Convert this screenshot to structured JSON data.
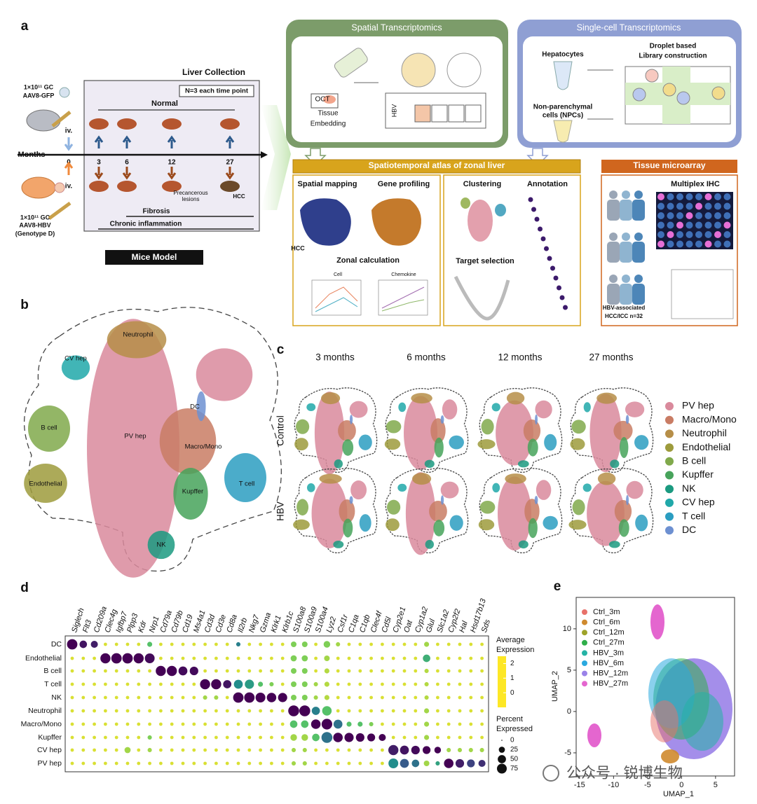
{
  "panel_labels": [
    "a",
    "b",
    "c",
    "d",
    "e"
  ],
  "panel_a": {
    "mouse_gfp": [
      "1×10¹¹ GC",
      "AAV8-GFP"
    ],
    "mouse_hbv": [
      "1×10¹¹ GC",
      "AAV8-HBV",
      "(Genotype D)"
    ],
    "liver_collection": "Liver Collection",
    "n_note": "N=3 each time point",
    "normal": "Normal",
    "months": "Months",
    "timepoints": [
      0,
      3,
      6,
      12,
      27
    ],
    "iv": [
      "iv.",
      "iv."
    ],
    "precancerous": [
      "Precancerous",
      "lesions"
    ],
    "hcc": "HCC",
    "fibrosis": "Fibrosis",
    "inflammation": "Chronic inflammation",
    "mice_model": "Mice Model",
    "spatial": {
      "title": "Spatial Transcriptomics",
      "oct": "OCT",
      "tissue": [
        "Tissue",
        "Embedding"
      ],
      "hbv": "HBV"
    },
    "single_cell": {
      "title": "Single-cell Transcriptomics",
      "hepatocytes": "Hepatocytes",
      "droplet": [
        "Droplet based",
        "Library construction"
      ],
      "npc": [
        "Non-parenchymal",
        "cells (NPCs)"
      ]
    },
    "atlas": {
      "title": "Spatiotemporal atlas of zonal liver",
      "spatial_mapping": "Spatial mapping",
      "gene_profiling": "Gene profiling",
      "hcc": "HCC",
      "zonal": "Zonal calculation",
      "cell": "Cell",
      "chemokine": "Chemokine",
      "clustering": "Clustering",
      "annotation": "Annotation",
      "target": "Target selection"
    },
    "tma": {
      "title": "Tissue microarray",
      "ihc": "Multiplex IHC",
      "cohort": [
        "HBV-associated",
        "HCC/ICC   n=32"
      ]
    }
  },
  "panel_b": {
    "labels": [
      "Neutrophil",
      "CV hep",
      "DC",
      "B cell",
      "PV hep",
      "Macro/Mono",
      "Endothelial",
      "Kupffer",
      "T cell",
      "NK"
    ]
  },
  "panel_c": {
    "columns": [
      "3 months",
      "6 months",
      "12 months",
      "27 months"
    ],
    "rows": [
      "Control",
      "HBV"
    ],
    "legend": [
      {
        "name": "PV hep",
        "color": "#d98a9c"
      },
      {
        "name": "Macro/Mono",
        "color": "#c97c64"
      },
      {
        "name": "Neutrophil",
        "color": "#b68e48"
      },
      {
        "name": "Endothelial",
        "color": "#9d9b3c"
      },
      {
        "name": "B cell",
        "color": "#80a94b"
      },
      {
        "name": "Kupffer",
        "color": "#47a35b"
      },
      {
        "name": "NK",
        "color": "#1b9a80"
      },
      {
        "name": "CV hep",
        "color": "#20a8a9"
      },
      {
        "name": "T cell",
        "color": "#2b9dc1"
      },
      {
        "name": "DC",
        "color": "#6d90d1"
      }
    ]
  },
  "chart_data": [
    {
      "type": "dotplot",
      "categories": [
        "Siglech",
        "Flt3",
        "Cd209a",
        "Clec4g",
        "Igfbp7",
        "Plpp3",
        "Kdr",
        "Nrp1",
        "Cd79a",
        "Cd79b",
        "Cd19",
        "Ms4a1",
        "Cd3d",
        "Cd3e",
        "Cd8a",
        "Il2rb",
        "Nkg7",
        "Gzma",
        "Klrk1",
        "Klrb1c",
        "S100a8",
        "S100a9",
        "S100a4",
        "Lyz2",
        "Csf1r",
        "C1qa",
        "C1qb",
        "Clec4f",
        "Cd5l",
        "Cyp2e1",
        "Oat",
        "Cyp1a2",
        "Glul",
        "Slc1a2",
        "Cyp2f2",
        "Hal",
        "Hsd17b13",
        "Sds"
      ],
      "series": [
        {
          "name": "DC",
          "values": [
            85,
            40,
            35,
            5,
            5,
            5,
            5,
            15,
            5,
            5,
            5,
            5,
            5,
            5,
            5,
            10,
            5,
            5,
            5,
            5,
            20,
            20,
            5,
            30,
            10,
            5,
            5,
            5,
            5,
            5,
            5,
            5,
            15,
            5,
            5,
            5,
            5,
            5
          ],
          "avg": [
            2.5,
            2.3,
            2.2,
            -0.8,
            -0.8,
            -0.8,
            -0.8,
            0,
            -0.8,
            -0.8,
            -0.8,
            -0.8,
            -0.8,
            -0.8,
            -0.8,
            1,
            -0.8,
            -0.8,
            -0.8,
            -0.8,
            -0.3,
            -0.3,
            -0.8,
            -0.3,
            -0.5,
            -0.8,
            -0.8,
            -0.8,
            -0.8,
            -0.8,
            -0.8,
            -0.8,
            -0.5,
            -0.8,
            -0.8,
            -0.8,
            -0.8,
            -0.8
          ]
        },
        {
          "name": "Endothelial",
          "values": [
            5,
            5,
            5,
            80,
            85,
            85,
            80,
            75,
            5,
            5,
            5,
            5,
            5,
            5,
            5,
            5,
            5,
            5,
            5,
            5,
            25,
            25,
            5,
            20,
            5,
            5,
            5,
            5,
            5,
            5,
            5,
            5,
            40,
            5,
            5,
            5,
            5,
            5
          ],
          "avg": [
            -0.8,
            -0.8,
            -0.8,
            2.5,
            2.5,
            2.5,
            2.5,
            2.4,
            -0.8,
            -0.8,
            -0.8,
            -0.8,
            -0.8,
            -0.8,
            -0.8,
            -0.8,
            -0.8,
            -0.8,
            -0.8,
            -0.8,
            -0.3,
            -0.3,
            -0.8,
            -0.5,
            -0.8,
            -0.8,
            -0.8,
            -0.8,
            -0.8,
            -0.8,
            -0.8,
            -0.8,
            0.3,
            -0.8,
            -0.8,
            -0.8,
            -0.8,
            -0.8
          ]
        },
        {
          "name": "B cell",
          "values": [
            5,
            5,
            5,
            5,
            5,
            5,
            5,
            5,
            80,
            80,
            60,
            55,
            5,
            5,
            5,
            5,
            5,
            5,
            5,
            5,
            20,
            20,
            5,
            15,
            5,
            5,
            5,
            5,
            5,
            5,
            5,
            5,
            10,
            5,
            5,
            5,
            5,
            5
          ],
          "avg": [
            -0.8,
            -0.8,
            -0.8,
            -0.8,
            -0.8,
            -0.8,
            -0.8,
            -0.8,
            2.5,
            2.5,
            2.4,
            2.4,
            -0.8,
            -0.8,
            -0.8,
            -0.8,
            -0.8,
            -0.8,
            -0.8,
            -0.8,
            -0.3,
            -0.3,
            -0.8,
            -0.6,
            -0.8,
            -0.8,
            -0.8,
            -0.8,
            -0.8,
            -0.8,
            -0.8,
            -0.8,
            -0.6,
            -0.8,
            -0.8,
            -0.8,
            -0.8,
            -0.8
          ]
        },
        {
          "name": "T cell",
          "values": [
            5,
            5,
            5,
            5,
            5,
            5,
            5,
            5,
            5,
            5,
            5,
            5,
            80,
            80,
            50,
            60,
            65,
            15,
            10,
            5,
            20,
            20,
            10,
            15,
            5,
            5,
            5,
            5,
            5,
            5,
            5,
            5,
            10,
            5,
            5,
            5,
            5,
            5
          ],
          "avg": [
            -0.8,
            -0.8,
            -0.8,
            -0.8,
            -0.8,
            -0.8,
            -0.8,
            -0.8,
            -0.8,
            -0.8,
            -0.8,
            -0.8,
            2.5,
            2.5,
            2.3,
            0.8,
            0.6,
            0,
            -0.3,
            -0.8,
            -0.3,
            -0.3,
            -0.5,
            -0.6,
            -0.8,
            -0.8,
            -0.8,
            -0.8,
            -0.8,
            -0.8,
            -0.8,
            -0.8,
            -0.6,
            -0.8,
            -0.8,
            -0.8,
            -0.8,
            -0.8
          ]
        },
        {
          "name": "NK",
          "values": [
            5,
            5,
            5,
            5,
            5,
            5,
            5,
            5,
            5,
            5,
            5,
            5,
            10,
            10,
            5,
            85,
            85,
            75,
            70,
            65,
            20,
            20,
            10,
            15,
            5,
            5,
            5,
            5,
            5,
            5,
            5,
            5,
            10,
            5,
            5,
            5,
            5,
            5
          ],
          "avg": [
            -0.8,
            -0.8,
            -0.8,
            -0.8,
            -0.8,
            -0.8,
            -0.8,
            -0.8,
            -0.8,
            -0.8,
            -0.8,
            -0.8,
            -0.5,
            -0.5,
            -0.8,
            2.5,
            2.5,
            2.5,
            2.5,
            2.5,
            -0.3,
            -0.3,
            -0.5,
            -0.6,
            -0.8,
            -0.8,
            -0.8,
            -0.8,
            -0.8,
            -0.8,
            -0.8,
            -0.8,
            -0.6,
            -0.8,
            -0.8,
            -0.8,
            -0.8,
            -0.8
          ]
        },
        {
          "name": "Neutrophil",
          "values": [
            5,
            5,
            5,
            5,
            5,
            5,
            5,
            5,
            5,
            5,
            5,
            5,
            5,
            5,
            5,
            5,
            5,
            5,
            5,
            5,
            95,
            95,
            50,
            70,
            5,
            5,
            5,
            5,
            5,
            5,
            5,
            5,
            15,
            5,
            5,
            5,
            5,
            5
          ],
          "avg": [
            -0.8,
            -0.8,
            -0.8,
            -0.8,
            -0.8,
            -0.8,
            -0.8,
            -0.8,
            -0.8,
            -0.8,
            -0.8,
            -0.8,
            -0.8,
            -0.8,
            -0.8,
            -0.8,
            -0.8,
            -0.8,
            -0.8,
            -0.8,
            2.5,
            2.5,
            1,
            0,
            -0.8,
            -0.8,
            -0.8,
            -0.8,
            -0.8,
            -0.8,
            -0.8,
            -0.8,
            -0.5,
            -0.8,
            -0.8,
            -0.8,
            -0.8,
            -0.8
          ]
        },
        {
          "name": "Macro/Mono",
          "values": [
            5,
            5,
            5,
            5,
            5,
            5,
            5,
            5,
            5,
            5,
            5,
            5,
            5,
            5,
            5,
            5,
            5,
            5,
            5,
            5,
            40,
            40,
            70,
            90,
            60,
            15,
            15,
            10,
            5,
            5,
            5,
            5,
            15,
            5,
            5,
            5,
            5,
            5
          ],
          "avg": [
            -0.8,
            -0.8,
            -0.8,
            -0.8,
            -0.8,
            -0.8,
            -0.8,
            -0.8,
            -0.8,
            -0.8,
            -0.8,
            -0.8,
            -0.8,
            -0.8,
            -0.8,
            -0.8,
            -0.8,
            -0.8,
            -0.8,
            -0.8,
            0,
            0,
            2.5,
            2.5,
            1.2,
            0,
            0,
            -0.3,
            -0.8,
            -0.8,
            -0.8,
            -0.8,
            -0.5,
            -0.8,
            -0.8,
            -0.8,
            -0.8,
            -0.8
          ]
        },
        {
          "name": "Kupffer",
          "values": [
            5,
            5,
            5,
            5,
            5,
            5,
            5,
            10,
            5,
            5,
            5,
            5,
            5,
            5,
            5,
            5,
            5,
            5,
            5,
            5,
            30,
            30,
            40,
            95,
            70,
            65,
            55,
            45,
            35,
            5,
            5,
            5,
            15,
            5,
            5,
            5,
            5,
            5
          ],
          "avg": [
            -0.8,
            -0.8,
            -0.8,
            -0.8,
            -0.8,
            -0.8,
            -0.8,
            -0.3,
            -0.8,
            -0.8,
            -0.8,
            -0.8,
            -0.8,
            -0.8,
            -0.8,
            -0.8,
            -0.8,
            -0.8,
            -0.8,
            -0.8,
            -0.5,
            -0.5,
            0,
            1.2,
            2.5,
            2.5,
            2.5,
            2.5,
            2.5,
            -0.8,
            -0.8,
            -0.8,
            -0.5,
            -0.8,
            -0.8,
            -0.8,
            -0.8,
            -0.8
          ]
        },
        {
          "name": "CV hep",
          "values": [
            5,
            5,
            5,
            5,
            5,
            25,
            5,
            10,
            5,
            5,
            5,
            5,
            5,
            5,
            5,
            5,
            5,
            5,
            5,
            5,
            10,
            10,
            5,
            5,
            5,
            5,
            5,
            5,
            5,
            80,
            60,
            55,
            45,
            30,
            10,
            10,
            10,
            10
          ],
          "avg": [
            -0.8,
            -0.8,
            -0.8,
            -0.8,
            -0.8,
            -0.5,
            -0.8,
            -0.5,
            -0.8,
            -0.8,
            -0.8,
            -0.8,
            -0.8,
            -0.8,
            -0.8,
            -0.8,
            -0.8,
            -0.8,
            -0.8,
            -0.8,
            -0.5,
            -0.5,
            -0.8,
            -0.8,
            -0.8,
            -0.8,
            -0.8,
            -0.8,
            -0.8,
            2.2,
            2.3,
            2.4,
            2.5,
            2.5,
            -0.5,
            -0.5,
            -0.5,
            -0.5
          ]
        },
        {
          "name": "PV hep",
          "values": [
            5,
            5,
            5,
            5,
            5,
            5,
            5,
            5,
            5,
            5,
            5,
            5,
            5,
            5,
            5,
            5,
            5,
            5,
            5,
            5,
            10,
            10,
            5,
            5,
            5,
            5,
            5,
            5,
            5,
            75,
            60,
            40,
            20,
            10,
            70,
            55,
            45,
            35
          ],
          "avg": [
            -0.8,
            -0.8,
            -0.8,
            -0.8,
            -0.8,
            -0.8,
            -0.8,
            -0.8,
            -0.8,
            -0.8,
            -0.8,
            -0.8,
            -0.8,
            -0.8,
            -0.8,
            -0.8,
            -0.8,
            -0.8,
            -0.8,
            -0.8,
            -0.5,
            -0.5,
            -0.8,
            -0.8,
            -0.8,
            -0.8,
            -0.8,
            -0.8,
            -0.8,
            0.8,
            1.5,
            1.2,
            -0.5,
            0.5,
            2.5,
            2.2,
            1.8,
            2
          ]
        }
      ],
      "color_title": [
        "Average",
        "Expression"
      ],
      "clim": [
        -1,
        2.5
      ],
      "cticks": [
        2,
        1,
        0
      ],
      "size_title": [
        "Percent",
        "Expressed"
      ],
      "size_ticks": [
        0,
        25,
        50,
        75
      ]
    },
    {
      "type": "scatter",
      "series": [
        {
          "name": "Ctrl_3m",
          "color": "#e8716a"
        },
        {
          "name": "Ctrl_6m",
          "color": "#cf8a2e"
        },
        {
          "name": "Ctrl_12m",
          "color": "#9ea32a"
        },
        {
          "name": "Ctrl_27m",
          "color": "#2fae4a"
        },
        {
          "name": "HBV_3m",
          "color": "#25b3a5"
        },
        {
          "name": "HBV_6m",
          "color": "#2aa9df"
        },
        {
          "name": "HBV_12m",
          "color": "#9a82e8"
        },
        {
          "name": "HBV_27m",
          "color": "#e466cf"
        }
      ],
      "xlim": [
        -15.5,
        7.8
      ],
      "ylim": [
        -7.8,
        13.8
      ],
      "xticks": [
        -15,
        -10,
        -5,
        0,
        5
      ],
      "yticks": [
        -5,
        0,
        5,
        10
      ],
      "xlabel": "UMAP_1",
      "ylabel": "UMAP_2"
    }
  ],
  "watermark": "公众号 · 锐博生物"
}
